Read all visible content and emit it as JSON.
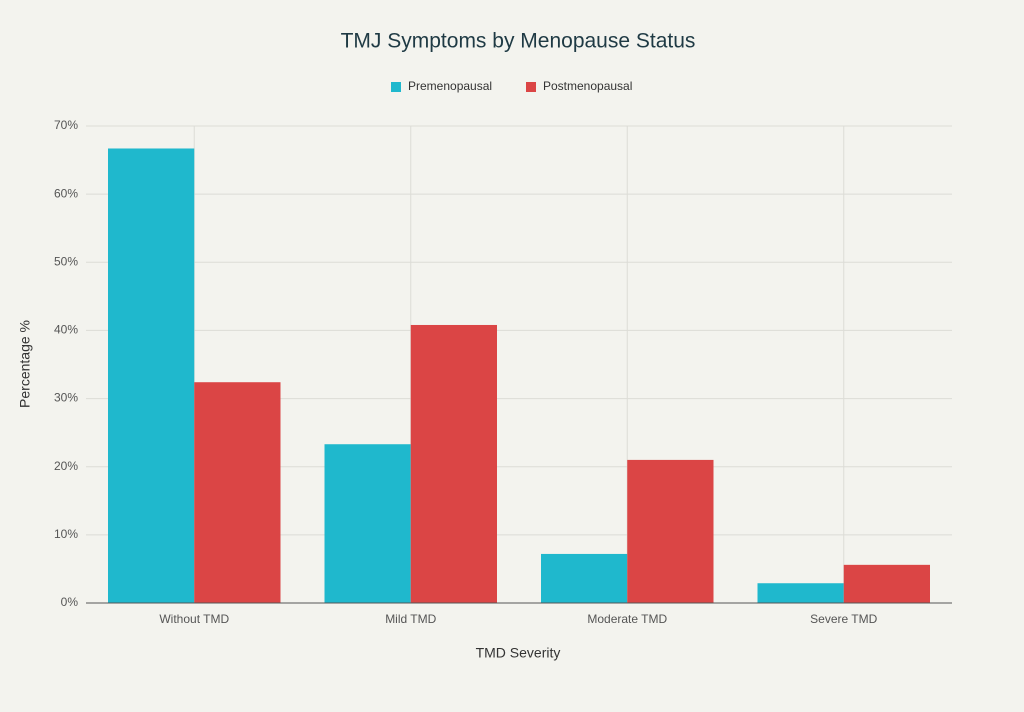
{
  "chart_data": {
    "type": "bar",
    "title": "TMJ Symptoms by Menopause Status",
    "x_label": "TMD Severity",
    "y_label": "Percentage %",
    "categories": [
      "Without TMD",
      "Mild TMD",
      "Moderate TMD",
      "Severe TMD"
    ],
    "series": [
      {
        "name": "Premenopausal",
        "color": "#1fb8cd",
        "values": [
          66.7,
          23.3,
          7.2,
          2.9
        ]
      },
      {
        "name": "Postmenopausal",
        "color": "#db4545",
        "values": [
          32.4,
          40.8,
          21.0,
          5.6
        ]
      }
    ],
    "ylim": [
      0,
      70
    ],
    "yticks": [
      {
        "value": 0,
        "label": "0%"
      },
      {
        "value": 10,
        "label": "10%"
      },
      {
        "value": 20,
        "label": "20%"
      },
      {
        "value": 30,
        "label": "30%"
      },
      {
        "value": 40,
        "label": "40%"
      },
      {
        "value": 50,
        "label": "50%"
      },
      {
        "value": 60,
        "label": "60%"
      },
      {
        "value": 70,
        "label": "70%"
      }
    ],
    "grid": true,
    "legend": "top"
  }
}
